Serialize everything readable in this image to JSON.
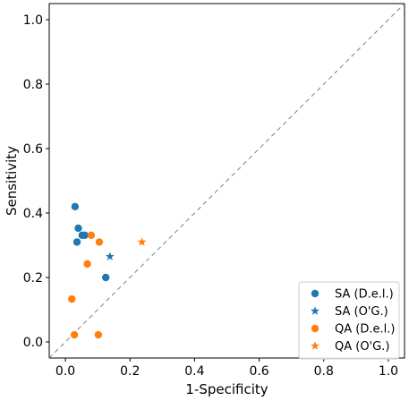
{
  "chart_data": {
    "type": "scatter",
    "xlabel": "1-Specificity",
    "ylabel": "Sensitivity",
    "xlim": [
      -0.05,
      1.05
    ],
    "ylim": [
      -0.05,
      1.05
    ],
    "xticks": [
      0.0,
      0.2,
      0.4,
      0.6,
      0.8,
      1.0
    ],
    "yticks": [
      0.0,
      0.2,
      0.4,
      0.6,
      0.8,
      1.0
    ],
    "xtick_labels": [
      "0.0",
      "0.2",
      "0.4",
      "0.6",
      "0.8",
      "1.0"
    ],
    "ytick_labels": [
      "0.0",
      "0.2",
      "0.4",
      "0.6",
      "0.8",
      "1.0"
    ],
    "grid": false,
    "legend_position": "bottom-right",
    "reference_line": {
      "style": "dashed",
      "color": "#808080",
      "from": [
        -0.05,
        -0.05
      ],
      "to": [
        1.05,
        1.05
      ]
    },
    "series": [
      {
        "name": "SA (D.e.l.)",
        "marker": "circle",
        "color": "#1f77b4",
        "points": [
          [
            0.03,
            0.42
          ],
          [
            0.04,
            0.353
          ],
          [
            0.052,
            0.331
          ],
          [
            0.06,
            0.331
          ],
          [
            0.036,
            0.31
          ],
          [
            0.125,
            0.2
          ]
        ]
      },
      {
        "name": "SA (O'G.)",
        "marker": "star",
        "color": "#1f77b4",
        "points": [
          [
            0.138,
            0.265
          ]
        ]
      },
      {
        "name": "QA (D.e.l.)",
        "marker": "circle",
        "color": "#ff7f0e",
        "points": [
          [
            0.08,
            0.331
          ],
          [
            0.105,
            0.31
          ],
          [
            0.068,
            0.242
          ],
          [
            0.02,
            0.133
          ],
          [
            0.028,
            0.022
          ],
          [
            0.102,
            0.022
          ]
        ]
      },
      {
        "name": "QA (O'G.)",
        "marker": "star",
        "color": "#ff7f0e",
        "points": [
          [
            0.237,
            0.31
          ]
        ]
      }
    ]
  }
}
